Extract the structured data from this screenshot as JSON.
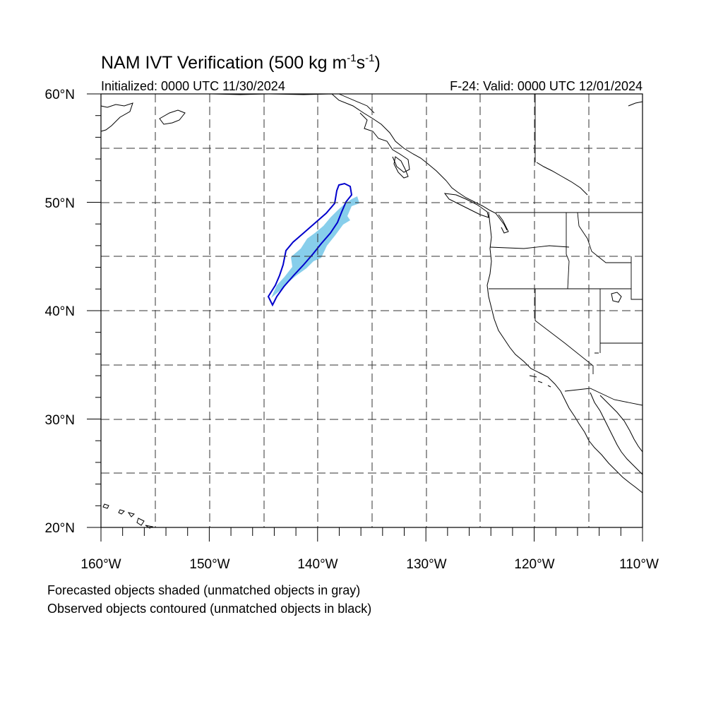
{
  "title": {
    "main": "NAM IVT Verification (500 kg m",
    "exp1": "-1",
    "mid": "s",
    "exp2": "-1",
    "end": ")"
  },
  "initialized": "Initialized: 0000 UTC 11/30/2024",
  "valid": "F-24: Valid: 0000 UTC 12/01/2024",
  "map": {
    "lon_range": [
      -160,
      -110
    ],
    "lat_range": [
      20,
      60
    ],
    "lon_labels": [
      "160°W",
      "150°W",
      "140°W",
      "130°W",
      "120°W",
      "110°W"
    ],
    "lat_labels": [
      "20°N",
      "30°N",
      "40°N",
      "50°N",
      "60°N"
    ],
    "forecast_color": "#87CEEB",
    "observed_color": "#0000CC"
  },
  "notes": {
    "line1": "Forecasted objects shaded (unmatched objects in gray)",
    "line2": "Observed objects contoured (unmatched objects in black)"
  }
}
